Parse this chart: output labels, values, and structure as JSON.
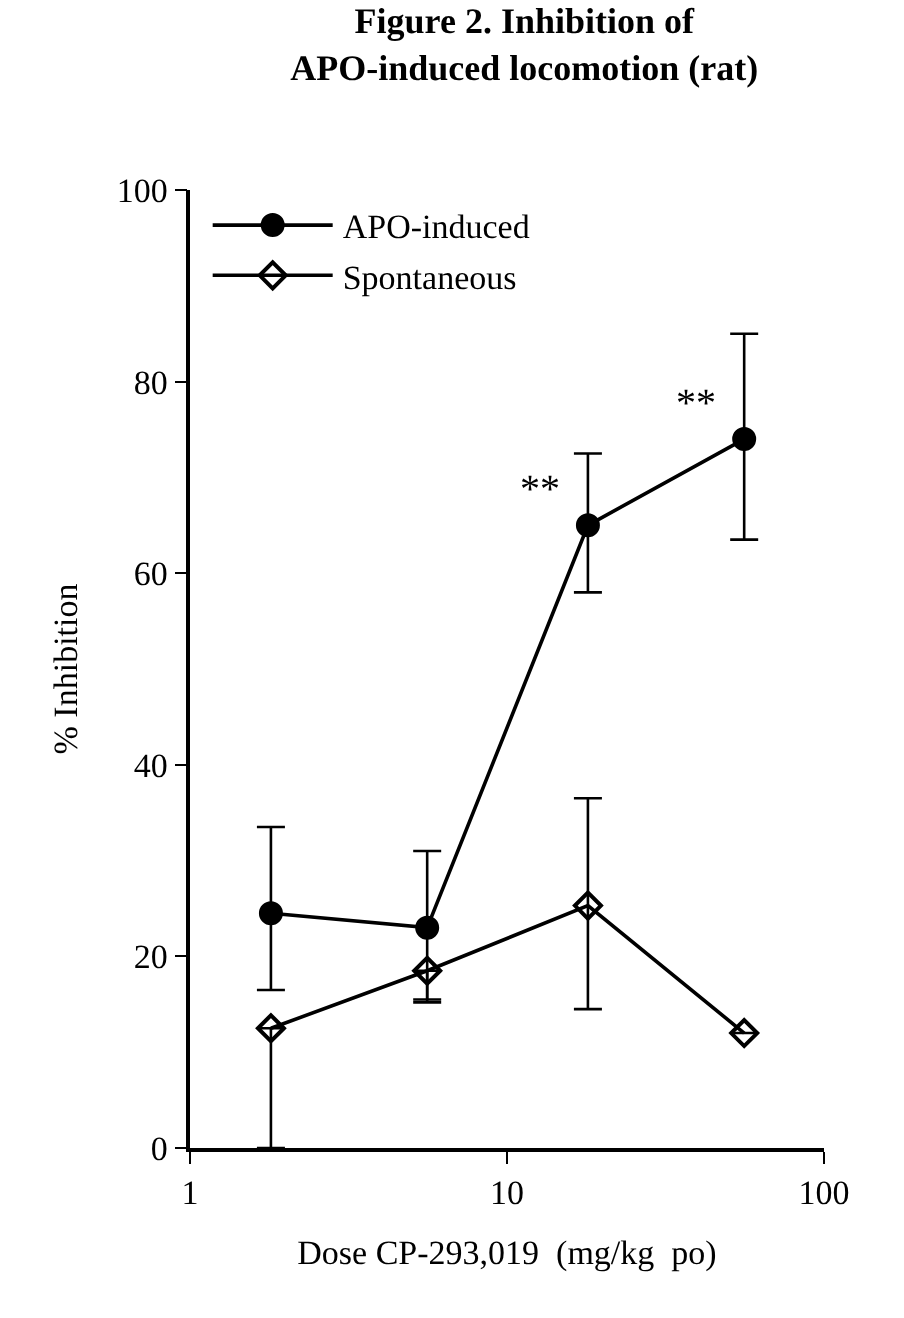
{
  "chart_data": {
    "type": "line",
    "title": "Figure 2. Inhibition of\nAPO-induced locomotion (rat)",
    "xlabel": "Dose CP-293,019  (mg/kg  po)",
    "ylabel": "% Inhibition",
    "x": [
      1.8,
      5.6,
      18,
      56
    ],
    "series": [
      {
        "name": "APO-induced",
        "color": "#000000",
        "marker": "circle",
        "values": [
          24.5,
          23,
          65,
          74
        ],
        "errors": [
          [
            16.5,
            33.5
          ],
          [
            15.5,
            31
          ],
          [
            58,
            72.5
          ],
          [
            63.5,
            85
          ]
        ]
      },
      {
        "name": "Spontaneous",
        "color": "#000000",
        "marker": "diamond",
        "values": [
          12.5,
          18.5,
          25.3,
          12
        ],
        "errors": [
          [
            0,
            12.5
          ],
          [
            15.2,
            18.5
          ],
          [
            14.5,
            36.5
          ],
          null
        ]
      }
    ],
    "annotations": [
      {
        "text": "**",
        "x": 18,
        "y": 65
      },
      {
        "text": "**",
        "x": 56,
        "y": 74
      }
    ],
    "log": "x",
    "xlim": [
      1,
      100
    ],
    "xticks": [
      1,
      10,
      100
    ],
    "ylim": [
      0,
      100
    ],
    "yticks": [
      0,
      20,
      40,
      60,
      80,
      100
    ],
    "legend": "top left"
  }
}
